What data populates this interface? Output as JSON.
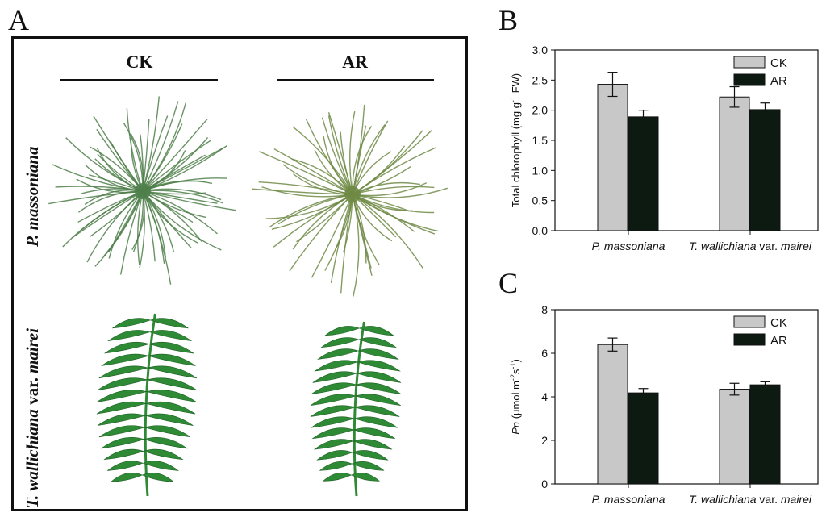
{
  "panels": {
    "a": "A",
    "b": "B",
    "c": "C"
  },
  "panelA": {
    "col_ck": "CK",
    "col_ar": "AR",
    "row1": "P. massoniana",
    "row2_species": "T. wallichiana",
    "row2_var": " var. ",
    "row2_name": "mairei"
  },
  "colors": {
    "ck": "#c8c8c8",
    "ar": "#0d1a12",
    "needle": "#4f7f4a",
    "needle_ar": "#6f8a45",
    "leaf": "#2f8a35"
  },
  "chart_data": [
    {
      "type": "bar",
      "panel": "B",
      "categories": [
        "P. massoniana",
        "T. wallichiana var. mairei"
      ],
      "category_parts": [
        [
          {
            "t": "P. massoniana",
            "i": true
          }
        ],
        [
          {
            "t": "T. wallichiana",
            "i": true
          },
          {
            "t": " var. ",
            "i": false
          },
          {
            "t": "mairei",
            "i": true
          }
        ]
      ],
      "series": [
        {
          "name": "CK",
          "values": [
            2.43,
            2.22
          ],
          "errors": [
            0.2,
            0.17
          ]
        },
        {
          "name": "AR",
          "values": [
            1.89,
            2.01
          ],
          "errors": [
            0.11,
            0.11
          ]
        }
      ],
      "ylabel_parts": [
        {
          "t": "Total chlorophyll (mg g",
          "s": ""
        },
        {
          "t": "-1",
          "s": "sup"
        },
        {
          "t": " FW)",
          "s": ""
        }
      ],
      "ylim": [
        0,
        3.0
      ],
      "yticks": [
        "0.0",
        "0.5",
        "1.0",
        "1.5",
        "2.0",
        "2.5",
        "3.0"
      ],
      "legend": "top-right",
      "grid": false
    },
    {
      "type": "bar",
      "panel": "C",
      "categories": [
        "P. massoniana",
        "T. wallichiana var. mairei"
      ],
      "category_parts": [
        [
          {
            "t": "P. massoniana",
            "i": true
          }
        ],
        [
          {
            "t": "T. wallichiana",
            "i": true
          },
          {
            "t": " var. ",
            "i": false
          },
          {
            "t": "mairei",
            "i": true
          }
        ]
      ],
      "series": [
        {
          "name": "CK",
          "values": [
            6.4,
            4.35
          ],
          "errors": [
            0.3,
            0.27
          ]
        },
        {
          "name": "AR",
          "values": [
            4.18,
            4.55
          ],
          "errors": [
            0.2,
            0.14
          ]
        }
      ],
      "ylabel_parts": [
        {
          "t": "Pn",
          "s": "it"
        },
        {
          "t": " (μmol m",
          "s": ""
        },
        {
          "t": "-2",
          "s": "sup"
        },
        {
          "t": "s",
          "s": ""
        },
        {
          "t": "-1",
          "s": "sup"
        },
        {
          "t": ")",
          "s": ""
        }
      ],
      "ylim": [
        0,
        8
      ],
      "yticks": [
        "0",
        "2",
        "4",
        "6",
        "8"
      ],
      "legend": "top-right",
      "grid": false
    }
  ]
}
